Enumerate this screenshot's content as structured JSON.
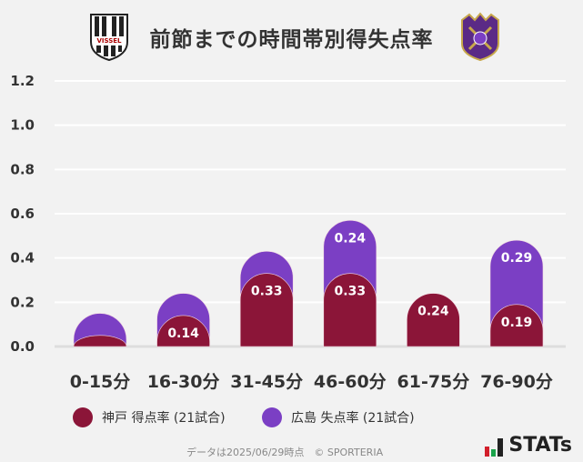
{
  "title": "前節までの時間帯別得失点率",
  "logos": {
    "left": "VISSEL",
    "right": "SANFRECCE"
  },
  "colors": {
    "kobe": "#8b1538",
    "hiroshima": "#7b3fc4",
    "grid": "#ffffff",
    "background": "#f2f2f2"
  },
  "chart_data": {
    "type": "bar",
    "stacked": true,
    "categories": [
      "0-15分",
      "16-30分",
      "31-45分",
      "46-60分",
      "61-75分",
      "76-90分"
    ],
    "series": [
      {
        "name": "神戸 得点率 (21試合)",
        "values": [
          0.05,
          0.14,
          0.33,
          0.33,
          0.24,
          0.19
        ],
        "labels": [
          "",
          "0.14",
          "0.33",
          "0.33",
          "0.24",
          "0.19"
        ]
      },
      {
        "name": "広島 失点率 (21試合)",
        "values": [
          0.1,
          0.1,
          0.1,
          0.24,
          0,
          0.29
        ],
        "labels": [
          "",
          "",
          "",
          "0.24",
          "",
          "0.29"
        ]
      }
    ],
    "yticks": [
      "0.0",
      "0.2",
      "0.4",
      "0.6",
      "0.8",
      "1.0",
      "1.2"
    ],
    "ylim": [
      0,
      1.2
    ],
    "grid": true,
    "legend": "bottom"
  },
  "legend": {
    "kobe": "神戸 得点率 (21試合)",
    "hiroshima": "広島 失点率 (21試合)"
  },
  "footer": "データは2025/06/29時点　© SPORTERIA",
  "brand": "STATs"
}
